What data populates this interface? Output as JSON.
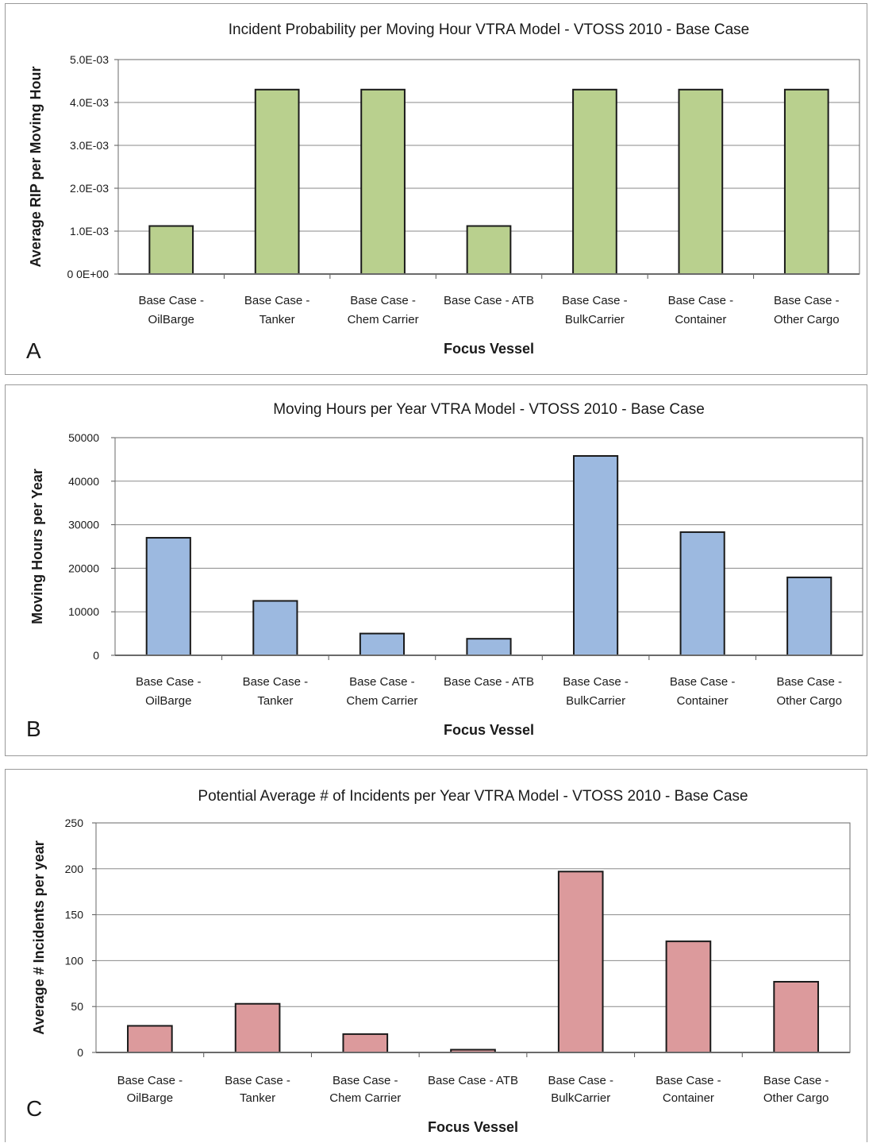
{
  "chart_data": [
    {
      "type": "bar",
      "panel_letter": "A",
      "title": "Incident Probability per Moving Hour VTRA Model - VTOSS 2010 - Base Case",
      "xlabel": "Focus Vessel",
      "ylabel": "Average RIP per Moving Hour",
      "categories": [
        [
          "Base Case -",
          "OilBarge"
        ],
        [
          "Base Case -",
          "Tanker"
        ],
        [
          "Base Case -",
          "Chem Carrier"
        ],
        [
          "Base  Case - ATB",
          ""
        ],
        [
          "Base Case -",
          "BulkCarrier"
        ],
        [
          "Base Case -",
          "Container"
        ],
        [
          "Base Case -",
          "Other Cargo"
        ]
      ],
      "values": [
        0.00112,
        0.0043,
        0.0043,
        0.00112,
        0.0043,
        0.0043,
        0.0043
      ],
      "ylim": [
        0,
        0.005
      ],
      "yticks": [
        0,
        0.001,
        0.002,
        0.003,
        0.004,
        0.005
      ],
      "ytick_labels": [
        "0 0E+00",
        "1.0E-03",
        "2.0E-03",
        "3.0E-03",
        "4.0E-03",
        "5.0E-03"
      ],
      "bar_color": "#b9d08e",
      "grid": true,
      "legend": "none"
    },
    {
      "type": "bar",
      "panel_letter": "B",
      "title": "Moving Hours per Year VTRA Model - VTOSS 2010 - Base Case",
      "xlabel": "Focus Vessel",
      "ylabel": "Moving Hours per Year",
      "categories": [
        [
          "Base Case -",
          "OilBarge"
        ],
        [
          "Base Case -",
          "Tanker"
        ],
        [
          "Base Case -",
          "Chem Carrier"
        ],
        [
          "Base  Case - ATB",
          ""
        ],
        [
          "Base Case -",
          "BulkCarrier"
        ],
        [
          "Base Case -",
          "Container"
        ],
        [
          "Base Case -",
          "Other Cargo"
        ]
      ],
      "values": [
        27000,
        12500,
        5000,
        3800,
        45800,
        28300,
        17900
      ],
      "ylim": [
        0,
        50000
      ],
      "yticks": [
        0,
        10000,
        20000,
        30000,
        40000,
        50000
      ],
      "ytick_labels": [
        "0",
        "10000",
        "20000",
        "30000",
        "40000",
        "50000"
      ],
      "bar_color": "#9cb9e0",
      "grid": true,
      "legend": "none"
    },
    {
      "type": "bar",
      "panel_letter": "C",
      "title": "Potential Average # of Incidents per Year VTRA Model - VTOSS 2010 - Base Case",
      "xlabel": "Focus Vessel",
      "ylabel": "Average # Incidents per year",
      "categories": [
        [
          "Base Case -",
          "OilBarge"
        ],
        [
          "Base Case -",
          "Tanker"
        ],
        [
          "Base Case -",
          "Chem Carrier"
        ],
        [
          "Base  Case - ATB",
          ""
        ],
        [
          "Base Case -",
          "BulkCarrier"
        ],
        [
          "Base Case -",
          "Container"
        ],
        [
          "Base Case -",
          "Other Cargo"
        ]
      ],
      "values": [
        29,
        53,
        20,
        3,
        197,
        121,
        77
      ],
      "ylim": [
        0,
        250
      ],
      "yticks": [
        0,
        50,
        100,
        150,
        200,
        250
      ],
      "ytick_labels": [
        "0",
        "50",
        "100",
        "150",
        "200",
        "250"
      ],
      "bar_color": "#dc9a9c",
      "grid": true,
      "legend": "none"
    }
  ]
}
